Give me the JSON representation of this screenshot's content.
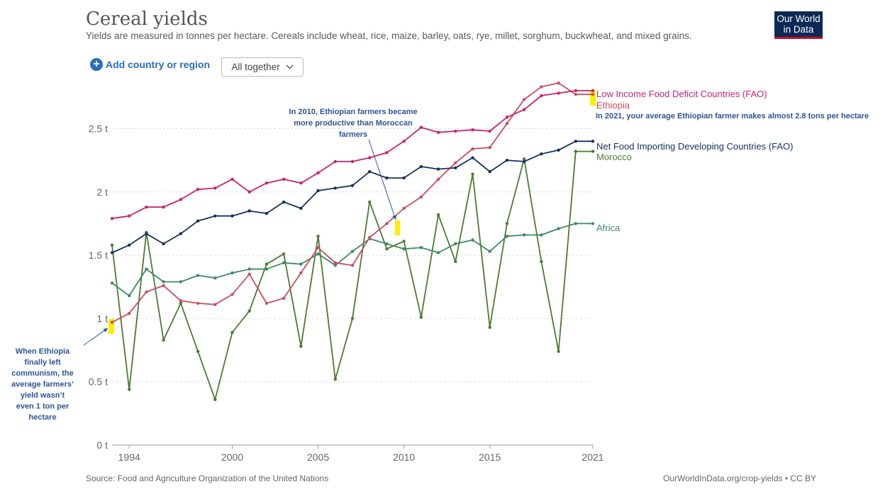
{
  "header": {
    "title": "Cereal yields",
    "subtitle": "Yields are measured in tonnes per hectare. Cereals include wheat, rice, maize, barley, oats, rye, millet, sorghum, buckwheat, and mixed grains.",
    "logo_line1": "Our World",
    "logo_line2": "in Data"
  },
  "controls": {
    "add_label": "Add country or region",
    "add_icon": "plus-circle-icon",
    "dropdown_value": "All together",
    "dropdown_icon": "chevron-down-icon"
  },
  "footer": {
    "source": "Source: Food and Agriculture Organization of the United Nations",
    "credit": "OurWorldInData.org/crop-yields • CC BY"
  },
  "chart_data": {
    "type": "line",
    "title": "Cereal yields",
    "xlabel": "",
    "ylabel": "",
    "x": [
      1993,
      1994,
      1995,
      1996,
      1997,
      1998,
      1999,
      2000,
      2001,
      2002,
      2003,
      2004,
      2005,
      2006,
      2007,
      2008,
      2009,
      2010,
      2011,
      2012,
      2013,
      2014,
      2015,
      2016,
      2017,
      2018,
      2019,
      2020,
      2021
    ],
    "xlim": [
      1993,
      2021
    ],
    "ylim": [
      0,
      2.9
    ],
    "x_ticks": [
      {
        "value": 1994,
        "label": "1994"
      },
      {
        "value": 2000,
        "label": "2000"
      },
      {
        "value": 2005,
        "label": "2005"
      },
      {
        "value": 2010,
        "label": "2010"
      },
      {
        "value": 2015,
        "label": "2015"
      },
      {
        "value": 2021,
        "label": "2021"
      }
    ],
    "y_ticks": [
      {
        "value": 0,
        "label": "0 t"
      },
      {
        "value": 0.5,
        "label": "0.5 t"
      },
      {
        "value": 1,
        "label": "1 t"
      },
      {
        "value": 1.5,
        "label": "1.5 t"
      },
      {
        "value": 2,
        "label": "2 t"
      },
      {
        "value": 2.5,
        "label": "2.5 t"
      }
    ],
    "grid": true,
    "legend": "right, labels at line ends",
    "series": [
      {
        "name": "Low Income Food Deficit Countries (FAO)",
        "color": "#c6246e",
        "values": [
          1.79,
          1.81,
          1.88,
          1.88,
          1.94,
          2.02,
          2.03,
          2.1,
          2.0,
          2.07,
          2.1,
          2.07,
          2.15,
          2.24,
          2.24,
          2.27,
          2.31,
          2.4,
          2.51,
          2.47,
          2.48,
          2.49,
          2.48,
          2.59,
          2.65,
          2.76,
          2.78,
          2.8,
          2.8
        ]
      },
      {
        "name": "Ethiopia",
        "color": "#c8505f",
        "values": [
          0.97,
          1.04,
          1.21,
          1.26,
          1.14,
          1.12,
          1.11,
          1.19,
          1.35,
          1.12,
          1.16,
          1.36,
          1.56,
          1.44,
          1.42,
          1.64,
          1.75,
          1.87,
          1.96,
          2.1,
          2.23,
          2.34,
          2.35,
          2.54,
          2.73,
          2.83,
          2.86,
          2.77,
          2.77
        ]
      },
      {
        "name": "Net Food Importing Developing Countries (FAO)",
        "color": "#16325c",
        "values": [
          1.52,
          1.58,
          1.67,
          1.59,
          1.67,
          1.77,
          1.81,
          1.81,
          1.85,
          1.83,
          1.92,
          1.87,
          2.01,
          2.03,
          2.05,
          2.16,
          2.11,
          2.11,
          2.2,
          2.18,
          2.19,
          2.27,
          2.16,
          2.25,
          2.24,
          2.3,
          2.33,
          2.4,
          2.4
        ]
      },
      {
        "name": "Morocco",
        "color": "#4c7a34",
        "values": [
          1.58,
          0.44,
          1.68,
          0.83,
          1.12,
          0.74,
          0.36,
          0.89,
          1.06,
          1.43,
          1.51,
          0.78,
          1.65,
          0.52,
          1.0,
          1.92,
          1.55,
          1.61,
          1.01,
          1.82,
          1.45,
          2.14,
          0.93,
          1.75,
          2.26,
          1.45,
          0.74,
          2.32,
          2.32
        ]
      },
      {
        "name": "Africa",
        "color": "#3f8a62",
        "values": [
          1.28,
          1.18,
          1.39,
          1.29,
          1.29,
          1.34,
          1.32,
          1.36,
          1.39,
          1.39,
          1.44,
          1.43,
          1.51,
          1.42,
          1.53,
          1.63,
          1.59,
          1.55,
          1.56,
          1.52,
          1.59,
          1.62,
          1.53,
          1.65,
          1.66,
          1.66,
          1.71,
          1.75,
          1.75
        ]
      }
    ],
    "annotations": [
      {
        "id": "ann-2010",
        "lines": [
          "In 2010, Ethiopian farmers became",
          "more productive than Moroccan",
          "farmers"
        ]
      },
      {
        "id": "ann-2021",
        "lines": [
          "In 2021, your average Ethiopian farmer makes almost 2.8 tons per hectare"
        ]
      },
      {
        "id": "ann-1993",
        "lines": [
          "When Ethiopia",
          "finally left",
          "communism, the",
          "average farmers’",
          "yield wasn’t",
          "even 1 ton per",
          "hectare"
        ]
      }
    ]
  }
}
